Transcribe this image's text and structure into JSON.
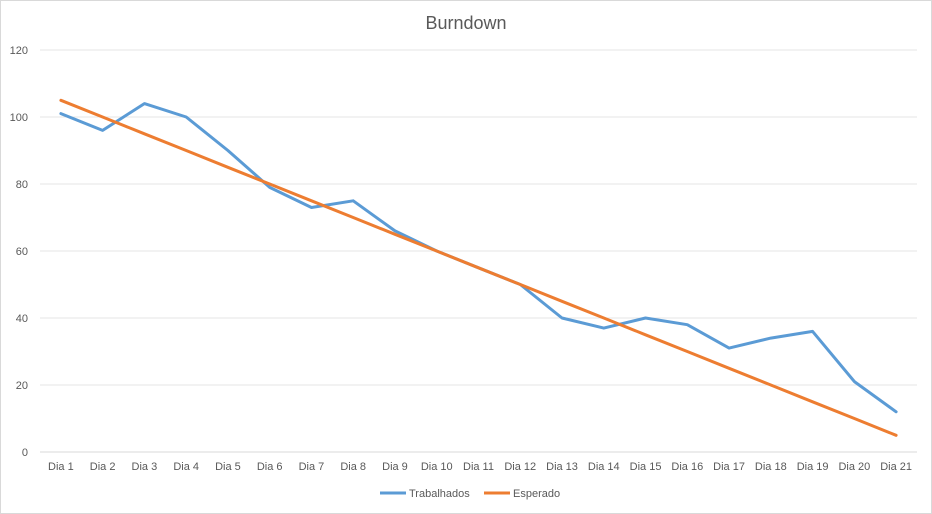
{
  "chart_data": {
    "type": "line",
    "title": "Burndown",
    "xlabel": "",
    "ylabel": "",
    "ylim": [
      0,
      120
    ],
    "yticks": [
      0,
      20,
      40,
      60,
      80,
      100,
      120
    ],
    "grid": true,
    "legend_position": "bottom",
    "categories": [
      "Dia 1",
      "Dia 2",
      "Dia 3",
      "Dia 4",
      "Dia 5",
      "Dia 6",
      "Dia 7",
      "Dia 8",
      "Dia 9",
      "Dia 10",
      "Dia 11",
      "Dia 12",
      "Dia 13",
      "Dia 14",
      "Dia 15",
      "Dia 16",
      "Dia 17",
      "Dia 18",
      "Dia 19",
      "Dia 20",
      "Dia 21"
    ],
    "series": [
      {
        "name": "Trabalhados",
        "color": "#5b9bd5",
        "values": [
          101,
          96,
          104,
          100,
          90,
          79,
          73,
          75,
          66,
          60,
          55,
          50,
          40,
          37,
          40,
          38,
          31,
          34,
          36,
          21,
          12
        ]
      },
      {
        "name": "Esperado",
        "color": "#ed7d31",
        "values": [
          105,
          100,
          95,
          90,
          85,
          80,
          75,
          70,
          65,
          60,
          55,
          50,
          45,
          40,
          35,
          30,
          25,
          20,
          15,
          10,
          5
        ]
      }
    ]
  }
}
